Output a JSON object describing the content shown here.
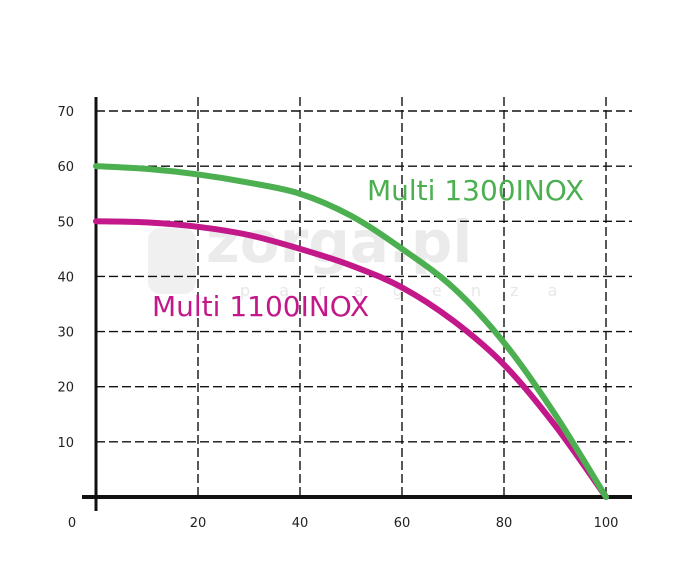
{
  "watermark": {
    "text": "zorga.pl",
    "subtext": "p a r a g e n z a"
  },
  "chart_data": {
    "type": "line",
    "title": "",
    "xlabel": "",
    "ylabel": "",
    "xlim": [
      0,
      100
    ],
    "ylim": [
      0,
      70
    ],
    "x_ticks": [
      20,
      40,
      60,
      80,
      100
    ],
    "y_ticks": [
      10,
      20,
      30,
      40,
      50,
      60,
      70
    ],
    "origin_label": "0",
    "grid": true,
    "colors": {
      "series1": "#4caf50",
      "series2": "#c2188a"
    },
    "series": [
      {
        "name": "Multi 1300INOX",
        "color": "#4caf50",
        "x": [
          0,
          10,
          20,
          30,
          40,
          50,
          60,
          70,
          80,
          90,
          100
        ],
        "y": [
          60,
          59.5,
          58.5,
          57,
          55,
          51,
          45,
          38,
          28,
          15,
          0
        ]
      },
      {
        "name": "Multi 1100INOX",
        "color": "#c2188a",
        "x": [
          0,
          10,
          20,
          30,
          40,
          50,
          60,
          70,
          80,
          90,
          100
        ],
        "y": [
          50,
          49.8,
          49,
          47.5,
          45,
          42,
          38,
          32,
          24,
          13,
          0
        ]
      }
    ]
  }
}
